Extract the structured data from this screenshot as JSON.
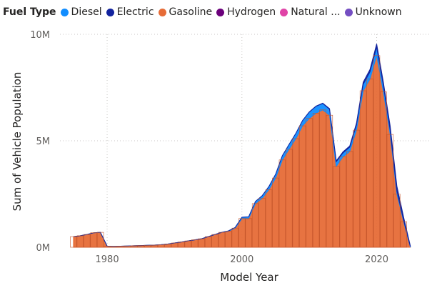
{
  "legend": {
    "title": "Fuel Type",
    "items": [
      {
        "label": "Diesel",
        "color": "#118DFF"
      },
      {
        "label": "Electric",
        "color": "#12239E"
      },
      {
        "label": "Gasoline",
        "color": "#E66C37"
      },
      {
        "label": "Hydrogen",
        "color": "#6B007B"
      },
      {
        "label": "Natural ...",
        "color": "#E044A7"
      },
      {
        "label": "Unknown",
        "color": "#744EC2"
      }
    ]
  },
  "chart_data": {
    "type": "area",
    "stacked": true,
    "xlabel": "Model Year",
    "ylabel": "Sum of Vehicle Population",
    "x_ticks": [
      1980,
      2000,
      2020
    ],
    "y_ticks": [
      {
        "value": 0,
        "label": "0M"
      },
      {
        "value": 5000000,
        "label": "5M"
      },
      {
        "value": 10000000,
        "label": "10M"
      }
    ],
    "xlim": [
      1973,
      2028
    ],
    "ylim": [
      0,
      10000000
    ],
    "grid": true,
    "legend_position": "top",
    "x": [
      1975,
      1976,
      1977,
      1978,
      1979,
      1980,
      1981,
      1982,
      1983,
      1984,
      1985,
      1986,
      1987,
      1988,
      1989,
      1990,
      1991,
      1992,
      1993,
      1994,
      1995,
      1996,
      1997,
      1998,
      1999,
      2000,
      2001,
      2002,
      2003,
      2004,
      2005,
      2006,
      2007,
      2008,
      2009,
      2010,
      2011,
      2012,
      2013,
      2014,
      2015,
      2016,
      2017,
      2018,
      2019,
      2020,
      2021,
      2022,
      2023,
      2024,
      2025
    ],
    "series": [
      {
        "name": "Gasoline",
        "color": "#E66C37",
        "values": [
          500000,
          540000,
          600000,
          680000,
          700000,
          50000,
          40000,
          50000,
          60000,
          70000,
          80000,
          90000,
          100000,
          120000,
          150000,
          200000,
          250000,
          300000,
          350000,
          400000,
          500000,
          600000,
          700000,
          750000,
          900000,
          1350000,
          1350000,
          2050000,
          2300000,
          2700000,
          3250000,
          4100000,
          4600000,
          5100000,
          5700000,
          6050000,
          6300000,
          6450000,
          6200000,
          3800000,
          4250000,
          4500000,
          5500000,
          7350000,
          7900000,
          9000000,
          7300000,
          5300000,
          2500000,
          1200000,
          0
        ]
      },
      {
        "name": "Diesel",
        "color": "#118DFF",
        "values": [
          0,
          0,
          0,
          0,
          0,
          0,
          0,
          0,
          0,
          0,
          0,
          0,
          0,
          0,
          0,
          0,
          0,
          0,
          0,
          0,
          0,
          0,
          0,
          20000,
          30000,
          60000,
          80000,
          100000,
          120000,
          150000,
          180000,
          200000,
          230000,
          250000,
          250000,
          300000,
          320000,
          300000,
          280000,
          220000,
          180000,
          200000,
          250000,
          300000,
          330000,
          400000,
          300000,
          200000,
          130000,
          60000,
          30000
        ]
      },
      {
        "name": "Electric",
        "color": "#12239E",
        "values": [
          0,
          0,
          0,
          0,
          0,
          0,
          0,
          0,
          0,
          0,
          0,
          0,
          0,
          0,
          0,
          0,
          0,
          0,
          0,
          0,
          0,
          0,
          0,
          0,
          0,
          0,
          0,
          0,
          0,
          0,
          0,
          0,
          0,
          0,
          0,
          5000,
          10000,
          20000,
          30000,
          40000,
          50000,
          60000,
          80000,
          100000,
          120000,
          150000,
          150000,
          200000,
          250000,
          150000,
          30000
        ]
      }
    ]
  }
}
